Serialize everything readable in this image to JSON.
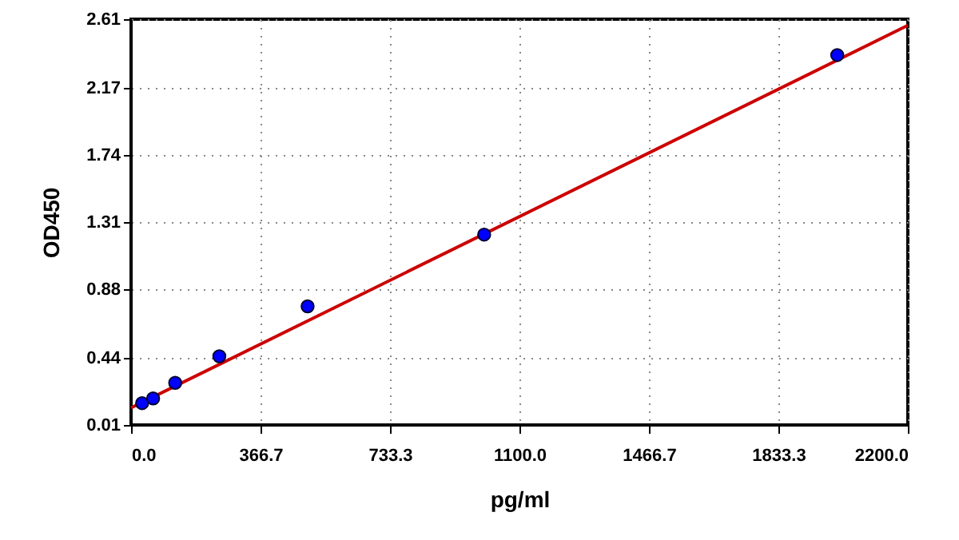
{
  "chart_data": {
    "type": "scatter",
    "xlabel": "pg/ml",
    "ylabel": "OD450",
    "xlim": [
      0,
      2200
    ],
    "ylim": [
      0.01,
      2.61
    ],
    "xticks": [
      {
        "value": 0,
        "label": "0.0"
      },
      366.7,
      733.3,
      {
        "value": 1100,
        "label": "1100.0"
      },
      1466.7,
      1833.3,
      {
        "value": 2200,
        "label": "2200.0"
      }
    ],
    "yticks": [
      0.01,
      0.44,
      0.88,
      1.31,
      1.74,
      2.17,
      2.61
    ],
    "grid": true,
    "series": [
      {
        "marker": "circle",
        "color": "#0000ff",
        "x": [
          31.25,
          62.5,
          125,
          250,
          500,
          1000,
          2000
        ],
        "values": [
          0.15,
          0.18,
          0.28,
          0.45,
          0.77,
          1.23,
          2.38
        ]
      },
      {
        "type": "line",
        "color": "#cc0000",
        "x": [
          0,
          2200
        ],
        "values": [
          0.12,
          2.57
        ]
      }
    ]
  }
}
